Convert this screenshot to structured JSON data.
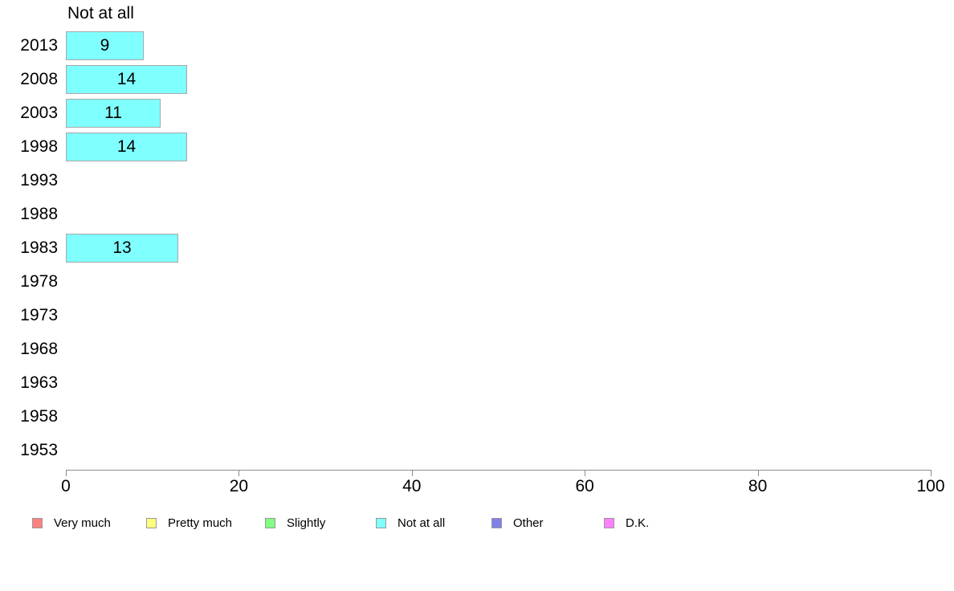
{
  "chart_data": {
    "type": "bar",
    "orientation": "horizontal",
    "title": "Not at all",
    "categories": [
      "2013",
      "2008",
      "2003",
      "1998",
      "1993",
      "1988",
      "1983",
      "1978",
      "1973",
      "1968",
      "1963",
      "1958",
      "1953"
    ],
    "values": [
      9,
      14,
      11,
      14,
      null,
      null,
      13,
      null,
      null,
      null,
      null,
      null,
      null
    ],
    "xlabel": "",
    "ylabel": "",
    "xlim": [
      0,
      100
    ],
    "x_ticks": [
      0,
      20,
      40,
      60,
      80,
      100
    ],
    "grid": false,
    "bar_color": "#80ffff",
    "bar_border_color": "#a8a8a8",
    "legend_position": "bottom",
    "legend": [
      {
        "label": "Very much",
        "color": "#ff8080"
      },
      {
        "label": "Pretty much",
        "color": "#ffff80"
      },
      {
        "label": "Slightly",
        "color": "#80ff80"
      },
      {
        "label": "Not at all",
        "color": "#80ffff"
      },
      {
        "label": "Other",
        "color": "#8080e8"
      },
      {
        "label": "D.K.",
        "color": "#ff80ff"
      }
    ]
  }
}
